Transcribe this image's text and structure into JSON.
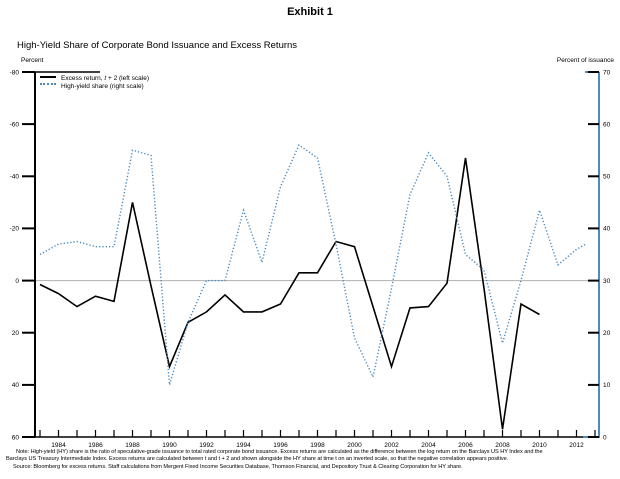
{
  "exhibit": "Exhibit 1",
  "title": "High-Yield Share of Corporate Bond Issuance and Excess Returns",
  "axes": {
    "left_unit": "Percent",
    "right_unit": "Percent of issuance",
    "left_ticks": [
      -80,
      -60,
      -40,
      -20,
      0,
      20,
      40,
      60
    ],
    "left_range": [
      -80,
      60
    ],
    "left_inverted": true,
    "right_ticks": [
      0,
      10,
      20,
      30,
      40,
      50,
      60,
      70
    ],
    "right_range": [
      0,
      70
    ],
    "x_range": [
      1983,
      2013
    ],
    "x_tick_interval": 1,
    "x_label_years": [
      1984,
      1986,
      1988,
      1990,
      1992,
      1994,
      1996,
      1998,
      2000,
      2002,
      2004,
      2006,
      2008,
      2010,
      2012
    ]
  },
  "legend": [
    {
      "prefix": "Excess return, ",
      "italic": "t",
      "suffix": " + 2 (left scale)",
      "style": "solid"
    },
    {
      "prefix": "High-yield share (right scale)",
      "italic": "",
      "suffix": "",
      "style": "dotted"
    }
  ],
  "chart_data": {
    "type": "line",
    "title": "High-Yield Share of Corporate Bond Issuance and Excess Returns",
    "xlabel": "",
    "ylabel_left": "Percent (inverted scale, -80 top to 60 bottom)",
    "ylabel_right": "Percent of issuance (0 to 70)",
    "grid": "single gray horizontal line at left 0 / right 30",
    "legend_position": "top-left inside plot",
    "series": [
      {
        "name": "Excess return, t + 2 (left scale)",
        "axis": "left",
        "style": "solid",
        "color": "#000000",
        "x": [
          1983,
          1984,
          1985,
          1986,
          1987,
          1988,
          1989,
          1990,
          1991,
          1992,
          1993,
          1994,
          1995,
          1996,
          1997,
          1998,
          1999,
          2000,
          2001,
          2002,
          2003,
          2004,
          2005,
          2006,
          2007,
          2008,
          2009,
          2010
        ],
        "values": [
          1.5,
          5,
          10,
          6,
          8,
          -30,
          2,
          33,
          16,
          12,
          5.5,
          12,
          12,
          9,
          -3,
          -3,
          -15,
          -13,
          10,
          33,
          10.5,
          10,
          1,
          -47,
          3,
          57,
          9,
          13
        ]
      },
      {
        "name": "High-yield share (right scale)",
        "axis": "right",
        "style": "dotted",
        "color": "#4a8cc2",
        "x": [
          1983,
          1984,
          1985,
          1986,
          1987,
          1988,
          1989,
          1990,
          1991,
          1992,
          1993,
          1994,
          1995,
          1996,
          1997,
          1998,
          1999,
          2000,
          2001,
          2002,
          2003,
          2004,
          2005,
          2006,
          2007,
          2008,
          2009,
          2010,
          2011,
          2012,
          2012.5
        ],
        "values": [
          35,
          37,
          37.5,
          36.5,
          36.5,
          55,
          54,
          10,
          22,
          30,
          30,
          43.5,
          33.5,
          48,
          56,
          53.5,
          37,
          19,
          11.5,
          28.5,
          46.5,
          54.5,
          50,
          35,
          32,
          18,
          30,
          43.5,
          33,
          36,
          37
        ]
      }
    ]
  },
  "note": {
    "line1": "Note: High-yield (HY) share is the ratio of speculative-grade issuance to total rated corporate bond issuance. Excess returns are calculated as the difference between the log return on the Barclays US HY Index and the",
    "line2": "Barclays US Treasury Intermediate Index. Excess returns are calculated between t and t + 2 and shown alongside the HY share at time t on an inverted scale, so that the negative correlation appears positive.",
    "line3": "Source: Bloomberg for excess returns. Staff calculations from Mergent Fixed Income Securities Database, Thomson Financial, and Depository Trust & Clearing Corporation for HY share."
  },
  "colors": {
    "black_line": "#000000",
    "blue_line": "#4a8cc2",
    "blue_axis": "#4a8cc2",
    "zero_line": "#b0b0b0",
    "text": "#000000"
  }
}
